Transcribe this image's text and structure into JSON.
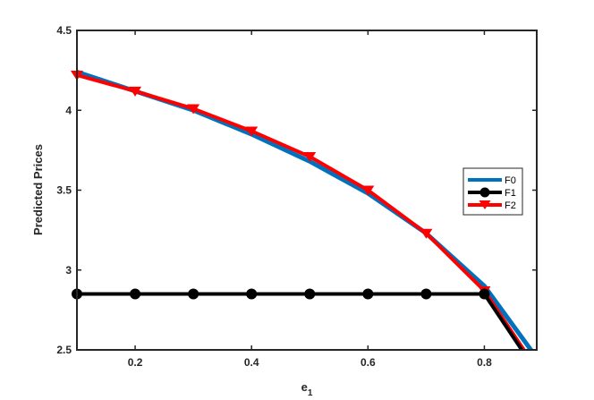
{
  "chart_data": {
    "type": "line",
    "xlabel": "e",
    "xlabel_sub": "1",
    "ylabel": "Predicted Prices",
    "xlim": [
      0.1,
      0.89
    ],
    "ylim": [
      2.5,
      4.5
    ],
    "xticks": [
      0.2,
      0.4,
      0.6,
      0.8
    ],
    "xtick_labels": [
      "0.2",
      "0.4",
      "0.6",
      "0.8"
    ],
    "yticks": [
      2.5,
      3,
      3.5,
      4,
      4.5
    ],
    "ytick_labels": [
      "2.5",
      "3",
      "3.5",
      "4",
      "4.5"
    ],
    "grid": false,
    "legend_position": "right",
    "series": [
      {
        "name": "F0",
        "color": "#0072bd",
        "marker": "none",
        "x": [
          0.1,
          0.2,
          0.3,
          0.4,
          0.5,
          0.6,
          0.7,
          0.8,
          0.89
        ],
        "y": [
          4.24,
          4.12,
          4.0,
          3.85,
          3.68,
          3.48,
          3.23,
          2.9,
          2.45
        ]
      },
      {
        "name": "F1",
        "color": "#000000",
        "marker": "circle",
        "x": [
          0.1,
          0.2,
          0.3,
          0.4,
          0.5,
          0.6,
          0.7,
          0.8,
          0.89
        ],
        "y": [
          2.85,
          2.85,
          2.85,
          2.85,
          2.85,
          2.85,
          2.85,
          2.85,
          2.36
        ],
        "marker_x": [
          0.1,
          0.2,
          0.3,
          0.4,
          0.5,
          0.6,
          0.7,
          0.8
        ]
      },
      {
        "name": "F2",
        "color": "#ff0000",
        "marker": "triangle-down",
        "x": [
          0.1,
          0.2,
          0.3,
          0.4,
          0.5,
          0.6,
          0.7,
          0.8,
          0.89
        ],
        "y": [
          4.22,
          4.12,
          4.01,
          3.87,
          3.71,
          3.5,
          3.23,
          2.87,
          2.38
        ],
        "marker_x": [
          0.1,
          0.2,
          0.3,
          0.4,
          0.5,
          0.6,
          0.7,
          0.8
        ]
      }
    ]
  }
}
